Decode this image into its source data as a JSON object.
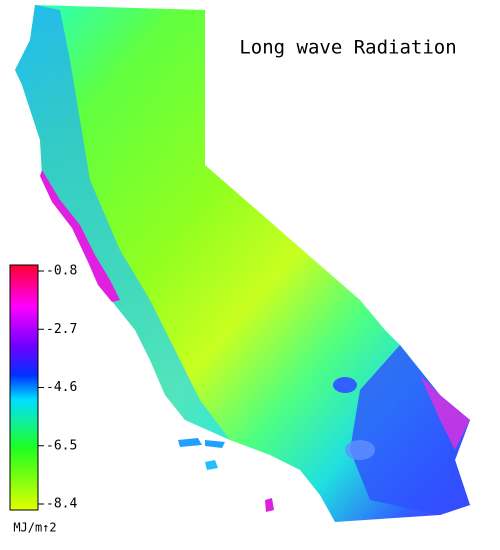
{
  "title": "Long wave Radiation",
  "colorbar": {
    "ticks": [
      -0.8,
      -2.7,
      -4.6,
      -6.5,
      -8.4
    ],
    "unit": "MJ/m↑2"
  }
}
